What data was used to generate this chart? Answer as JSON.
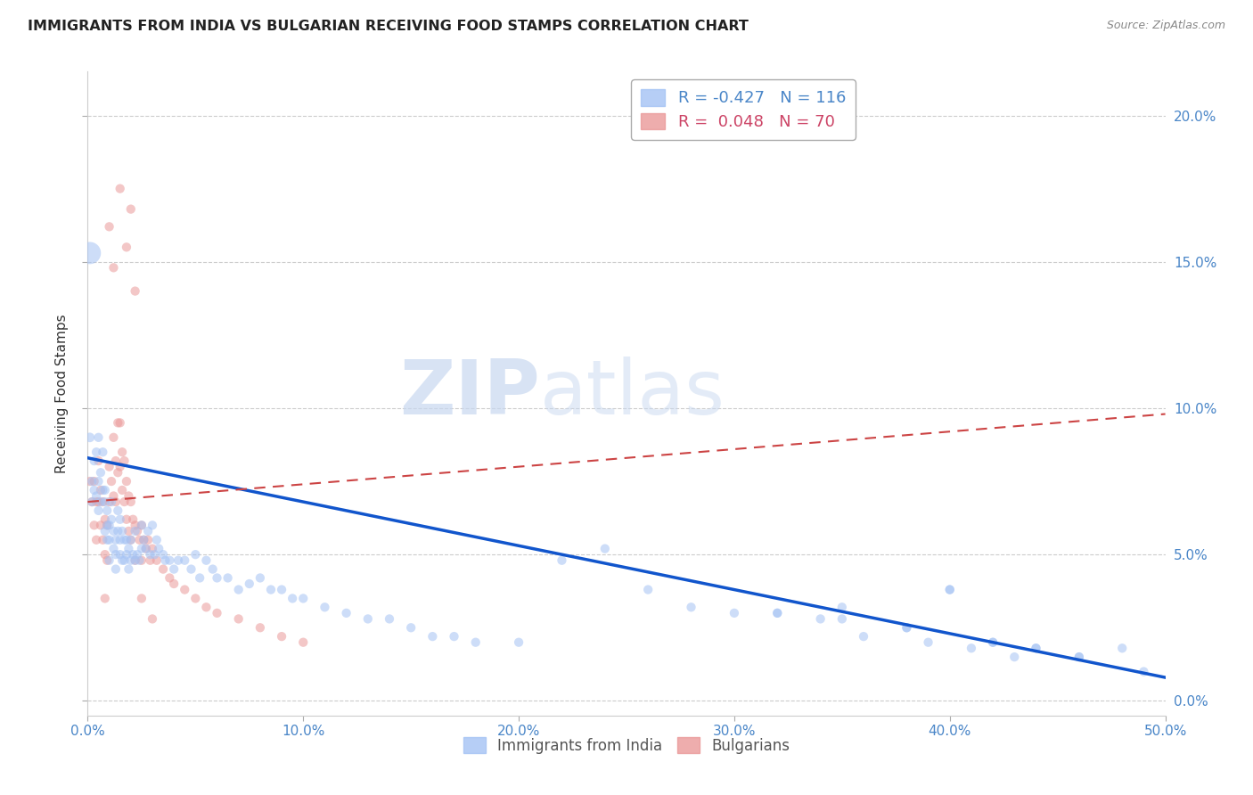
{
  "title": "IMMIGRANTS FROM INDIA VS BULGARIAN RECEIVING FOOD STAMPS CORRELATION CHART",
  "source": "Source: ZipAtlas.com",
  "ylabel": "Receiving Food Stamps",
  "xlim": [
    0.0,
    0.5
  ],
  "ylim": [
    -0.005,
    0.215
  ],
  "watermark_zip": "ZIP",
  "watermark_atlas": "atlas",
  "india_color": "#a4c2f4",
  "bulgarian_color": "#ea9999",
  "india_line_color": "#1155cc",
  "bulgarian_line_color": "#cc4444",
  "background_color": "#ffffff",
  "legend_india_R": "-0.427",
  "legend_india_N": "116",
  "legend_bulg_R": "0.048",
  "legend_bulg_N": "70",
  "tick_color": "#4a86c8",
  "ylabel_color": "#333333",
  "title_color": "#222222",
  "source_color": "#888888",
  "grid_color": "#cccccc",
  "india_x": [
    0.001,
    0.001,
    0.002,
    0.002,
    0.003,
    0.003,
    0.004,
    0.004,
    0.005,
    0.005,
    0.005,
    0.006,
    0.006,
    0.007,
    0.007,
    0.008,
    0.008,
    0.008,
    0.009,
    0.009,
    0.009,
    0.01,
    0.01,
    0.01,
    0.011,
    0.011,
    0.012,
    0.012,
    0.013,
    0.013,
    0.013,
    0.014,
    0.014,
    0.015,
    0.015,
    0.015,
    0.016,
    0.016,
    0.017,
    0.017,
    0.018,
    0.018,
    0.019,
    0.019,
    0.02,
    0.02,
    0.021,
    0.022,
    0.022,
    0.023,
    0.024,
    0.025,
    0.025,
    0.026,
    0.027,
    0.028,
    0.029,
    0.03,
    0.031,
    0.032,
    0.033,
    0.035,
    0.036,
    0.038,
    0.04,
    0.042,
    0.045,
    0.048,
    0.05,
    0.052,
    0.055,
    0.058,
    0.06,
    0.065,
    0.07,
    0.075,
    0.08,
    0.085,
    0.09,
    0.095,
    0.1,
    0.11,
    0.12,
    0.13,
    0.14,
    0.15,
    0.16,
    0.17,
    0.18,
    0.2,
    0.22,
    0.24,
    0.26,
    0.28,
    0.3,
    0.32,
    0.35,
    0.38,
    0.4,
    0.42,
    0.44,
    0.46,
    0.35,
    0.38,
    0.4,
    0.42,
    0.44,
    0.46,
    0.48,
    0.49,
    0.32,
    0.34,
    0.36,
    0.39,
    0.41,
    0.43
  ],
  "india_y": [
    0.153,
    0.09,
    0.075,
    0.068,
    0.082,
    0.072,
    0.085,
    0.07,
    0.09,
    0.075,
    0.065,
    0.078,
    0.068,
    0.085,
    0.072,
    0.072,
    0.068,
    0.058,
    0.065,
    0.06,
    0.055,
    0.06,
    0.055,
    0.048,
    0.068,
    0.062,
    0.058,
    0.052,
    0.055,
    0.05,
    0.045,
    0.065,
    0.058,
    0.062,
    0.055,
    0.05,
    0.058,
    0.048,
    0.055,
    0.048,
    0.055,
    0.05,
    0.052,
    0.045,
    0.055,
    0.048,
    0.05,
    0.058,
    0.048,
    0.05,
    0.048,
    0.06,
    0.052,
    0.055,
    0.052,
    0.058,
    0.05,
    0.06,
    0.05,
    0.055,
    0.052,
    0.05,
    0.048,
    0.048,
    0.045,
    0.048,
    0.048,
    0.045,
    0.05,
    0.042,
    0.048,
    0.045,
    0.042,
    0.042,
    0.038,
    0.04,
    0.042,
    0.038,
    0.038,
    0.035,
    0.035,
    0.032,
    0.03,
    0.028,
    0.028,
    0.025,
    0.022,
    0.022,
    0.02,
    0.02,
    0.048,
    0.052,
    0.038,
    0.032,
    0.03,
    0.03,
    0.028,
    0.025,
    0.038,
    0.02,
    0.018,
    0.015,
    0.032,
    0.025,
    0.038,
    0.02,
    0.018,
    0.015,
    0.018,
    0.01,
    0.03,
    0.028,
    0.022,
    0.02,
    0.018,
    0.015
  ],
  "india_size": [
    320,
    60,
    55,
    55,
    55,
    55,
    55,
    55,
    55,
    55,
    55,
    55,
    55,
    55,
    55,
    55,
    55,
    55,
    55,
    55,
    55,
    55,
    55,
    55,
    55,
    55,
    55,
    55,
    55,
    55,
    55,
    55,
    55,
    55,
    55,
    55,
    55,
    55,
    55,
    55,
    55,
    55,
    55,
    55,
    55,
    55,
    55,
    55,
    55,
    55,
    55,
    55,
    55,
    55,
    55,
    55,
    55,
    55,
    55,
    55,
    55,
    55,
    55,
    55,
    55,
    55,
    55,
    55,
    55,
    55,
    55,
    55,
    55,
    55,
    55,
    55,
    55,
    55,
    55,
    55,
    55,
    55,
    55,
    55,
    55,
    55,
    55,
    55,
    55,
    55,
    55,
    55,
    55,
    55,
    55,
    55,
    55,
    55,
    55,
    55,
    55,
    55,
    55,
    55,
    55,
    55,
    55,
    55,
    55,
    55,
    55,
    55,
    55,
    55,
    55,
    55
  ],
  "bulg_x": [
    0.001,
    0.002,
    0.003,
    0.003,
    0.004,
    0.004,
    0.005,
    0.005,
    0.006,
    0.006,
    0.007,
    0.007,
    0.008,
    0.008,
    0.009,
    0.009,
    0.01,
    0.01,
    0.011,
    0.012,
    0.012,
    0.013,
    0.013,
    0.014,
    0.014,
    0.015,
    0.015,
    0.016,
    0.016,
    0.017,
    0.017,
    0.018,
    0.018,
    0.019,
    0.019,
    0.02,
    0.02,
    0.021,
    0.022,
    0.022,
    0.023,
    0.024,
    0.025,
    0.025,
    0.026,
    0.027,
    0.028,
    0.029,
    0.03,
    0.032,
    0.035,
    0.038,
    0.04,
    0.045,
    0.05,
    0.055,
    0.06,
    0.07,
    0.08,
    0.09,
    0.1,
    0.015,
    0.02,
    0.018,
    0.022,
    0.01,
    0.012,
    0.008,
    0.03,
    0.025
  ],
  "bulg_y": [
    0.075,
    0.068,
    0.075,
    0.06,
    0.068,
    0.055,
    0.082,
    0.068,
    0.072,
    0.06,
    0.068,
    0.055,
    0.062,
    0.05,
    0.06,
    0.048,
    0.08,
    0.068,
    0.075,
    0.09,
    0.07,
    0.082,
    0.068,
    0.095,
    0.078,
    0.095,
    0.08,
    0.085,
    0.072,
    0.082,
    0.068,
    0.075,
    0.062,
    0.07,
    0.058,
    0.068,
    0.055,
    0.062,
    0.06,
    0.048,
    0.058,
    0.055,
    0.06,
    0.048,
    0.055,
    0.052,
    0.055,
    0.048,
    0.052,
    0.048,
    0.045,
    0.042,
    0.04,
    0.038,
    0.035,
    0.032,
    0.03,
    0.028,
    0.025,
    0.022,
    0.02,
    0.175,
    0.168,
    0.155,
    0.14,
    0.162,
    0.148,
    0.035,
    0.028,
    0.035
  ],
  "bulg_size": [
    55,
    55,
    55,
    55,
    55,
    55,
    55,
    55,
    55,
    55,
    55,
    55,
    55,
    55,
    55,
    55,
    55,
    55,
    55,
    55,
    55,
    55,
    55,
    55,
    55,
    55,
    55,
    55,
    55,
    55,
    55,
    55,
    55,
    55,
    55,
    55,
    55,
    55,
    55,
    55,
    55,
    55,
    55,
    55,
    55,
    55,
    55,
    55,
    55,
    55,
    55,
    55,
    55,
    55,
    55,
    55,
    55,
    55,
    55,
    55,
    55,
    55,
    55,
    55,
    55,
    55,
    55,
    55,
    55,
    55
  ],
  "india_line_x": [
    0.0,
    0.5
  ],
  "india_line_y": [
    0.083,
    0.008
  ],
  "bulg_line_x": [
    0.0,
    0.5
  ],
  "bulg_line_y": [
    0.068,
    0.098
  ]
}
